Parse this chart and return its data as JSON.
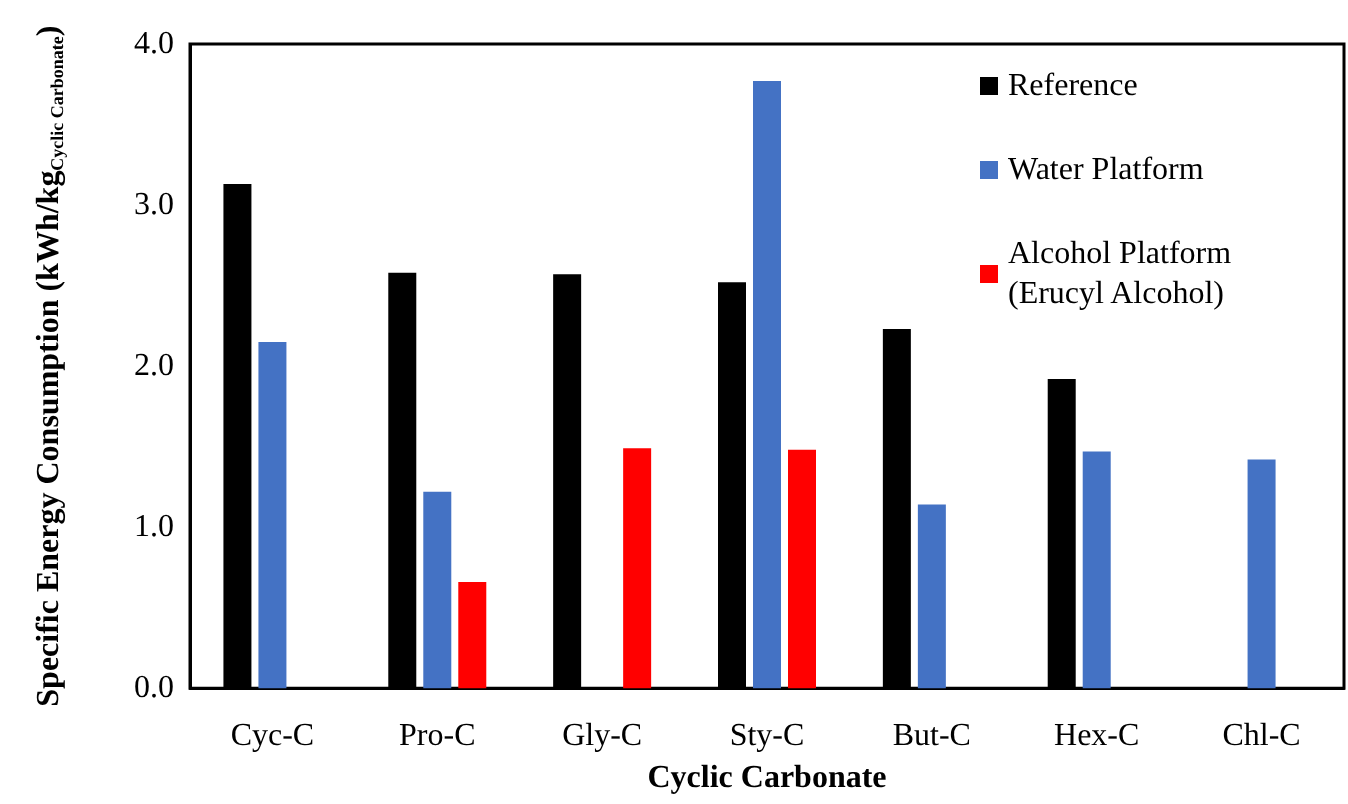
{
  "chart_data": {
    "type": "bar",
    "xlabel": "Cyclic Carbonate",
    "ylabel": "Specific Energy Consumption (kWh/kg$_{Cyclic Carbonate}$)",
    "categories": [
      "Cyc-C",
      "Pro-C",
      "Gly-C",
      "Sty-C",
      "But-C",
      "Hex-C",
      "Chl-C"
    ],
    "series": [
      {
        "name": "Reference",
        "color": "#000000",
        "values": [
          3.13,
          2.58,
          2.57,
          2.52,
          2.23,
          1.92,
          null
        ]
      },
      {
        "name": "Water Platform",
        "color": "#4472c4",
        "values": [
          2.15,
          1.22,
          null,
          3.77,
          1.14,
          1.47,
          1.42
        ]
      },
      {
        "name": "Alcohol Platform (Erucyl Alcohol)",
        "color": "#ff0000",
        "values": [
          null,
          0.66,
          1.49,
          1.48,
          null,
          null,
          null
        ]
      }
    ],
    "ylim": [
      0,
      4
    ],
    "yticks": [
      {
        "value": 0,
        "label": "0.0"
      },
      {
        "value": 1,
        "label": "1.0"
      },
      {
        "value": 2,
        "label": "2.0"
      },
      {
        "value": 3,
        "label": "3.0"
      },
      {
        "value": 4,
        "label": "4.0"
      }
    ],
    "grid": false,
    "legend": "top right"
  }
}
